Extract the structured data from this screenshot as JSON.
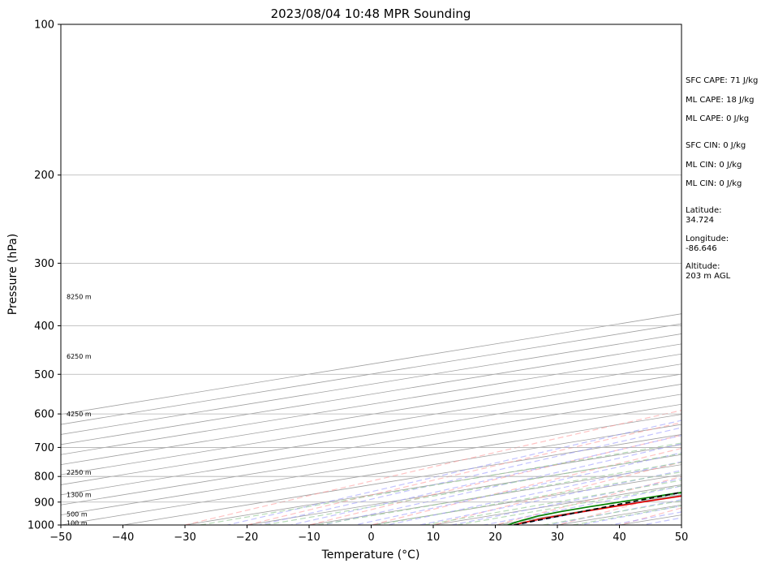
{
  "chart_data": {
    "type": "line",
    "subtype": "skew-t log-p sounding",
    "title": "2023/08/04 10:48 MPR Sounding",
    "xlabel": "Temperature (°C)",
    "ylabel": "Pressure (hPa)",
    "xlim": [
      -50,
      50
    ],
    "ylim": [
      1000,
      100
    ],
    "y_scale": "log",
    "x_ticks": [
      -50,
      -40,
      -30,
      -20,
      -10,
      0,
      10,
      20,
      30,
      40,
      50
    ],
    "y_ticks": [
      100,
      200,
      300,
      400,
      500,
      600,
      700,
      800,
      900,
      1000
    ],
    "grid": true,
    "height_labels": [
      {
        "pressure": 350,
        "label": "8250 m"
      },
      {
        "pressure": 460,
        "label": "6250 m"
      },
      {
        "pressure": 600,
        "label": "4250 m"
      },
      {
        "pressure": 785,
        "label": "2250 m"
      },
      {
        "pressure": 870,
        "label": "1300 m"
      },
      {
        "pressure": 950,
        "label": "500 m"
      },
      {
        "pressure": 990,
        "label": "100 m"
      }
    ],
    "stats": [
      "SFC CAPE: 71 J/kg",
      "ML CAPE: 18 J/kg",
      "ML CAPE: 0 J/kg",
      "SFC CIN: 0 J/kg",
      "ML CIN: 0 J/kg",
      "ML CIN: 0 J/kg"
    ],
    "location": [
      {
        "label": "Latitude:",
        "value": "34.724"
      },
      {
        "label": "Longitude:",
        "value": "-86.646"
      },
      {
        "label": "Altitude:",
        "value": "203 m AGL"
      }
    ],
    "series": [
      {
        "color": "#e00000",
        "style": "solid",
        "points": [
          [
            1000,
            23.0
          ],
          [
            990,
            22.2
          ],
          [
            970,
            21.2
          ],
          [
            950,
            20.8
          ],
          [
            930,
            20.8
          ],
          [
            900,
            20.8
          ],
          [
            880,
            21.2
          ],
          [
            850,
            21.2
          ],
          [
            820,
            21.2
          ],
          [
            800,
            20.8
          ],
          [
            780,
            20.4
          ],
          [
            760,
            20.0
          ],
          [
            740,
            19.6
          ],
          [
            720,
            19.4
          ],
          [
            700,
            19.2
          ],
          [
            690,
            18.8
          ],
          [
            680,
            18.2
          ],
          [
            660,
            17.2
          ],
          [
            640,
            16.2
          ],
          [
            620,
            15.3
          ],
          [
            600,
            14.6
          ],
          [
            580,
            14.0
          ],
          [
            560,
            13.6
          ],
          [
            540,
            13.0
          ],
          [
            520,
            12.2
          ],
          [
            500,
            11.4
          ],
          [
            480,
            10.5
          ],
          [
            460,
            9.5
          ],
          [
            440,
            8.2
          ],
          [
            420,
            7.0
          ],
          [
            400,
            5.8
          ],
          [
            380,
            4.6
          ],
          [
            360,
            3.2
          ],
          [
            340,
            1.6
          ],
          [
            320,
            -0.2
          ],
          [
            300,
            -2.2
          ],
          [
            285,
            -4.0
          ]
        ]
      },
      {
        "color": "#008000",
        "style": "solid",
        "points": [
          [
            1000,
            22.0
          ],
          [
            980,
            19.8
          ],
          [
            960,
            18.0
          ],
          [
            940,
            17.2
          ],
          [
            920,
            17.0
          ],
          [
            900,
            17.2
          ],
          [
            880,
            17.4
          ],
          [
            860,
            17.6
          ],
          [
            840,
            18.8
          ],
          [
            820,
            19.2
          ],
          [
            800,
            19.0
          ],
          [
            780,
            18.4
          ],
          [
            760,
            17.2
          ],
          [
            740,
            16.4
          ],
          [
            720,
            15.8
          ],
          [
            700,
            15.2
          ],
          [
            680,
            14.6
          ],
          [
            660,
            14.2
          ],
          [
            640,
            13.8
          ],
          [
            620,
            13.2
          ],
          [
            600,
            12.2
          ],
          [
            580,
            10.6
          ],
          [
            560,
            9.6
          ],
          [
            540,
            9.0
          ],
          [
            520,
            8.8
          ],
          [
            500,
            8.6
          ],
          [
            480,
            7.6
          ],
          [
            460,
            6.6
          ],
          [
            440,
            5.8
          ],
          [
            420,
            4.6
          ],
          [
            400,
            2.6
          ],
          [
            390,
            2.4
          ],
          [
            380,
            2.0
          ],
          [
            370,
            1.2
          ],
          [
            360,
            -0.8
          ],
          [
            350,
            -3.0
          ],
          [
            340,
            -5.0
          ],
          [
            330,
            -7.4
          ],
          [
            320,
            -10.4
          ],
          [
            310,
            -11.0
          ],
          [
            300,
            -12.4
          ],
          [
            292,
            -14.2
          ],
          [
            285,
            -14.8
          ]
        ]
      },
      {
        "color": "#000000",
        "style": "dashed",
        "points": [
          [
            1000,
            23.0
          ],
          [
            950,
            21.0
          ],
          [
            900,
            19.0
          ],
          [
            850,
            17.0
          ],
          [
            800,
            15.0
          ],
          [
            750,
            13.0
          ],
          [
            700,
            10.9
          ],
          [
            650,
            8.6
          ],
          [
            600,
            6.1
          ],
          [
            550,
            3.4
          ],
          [
            500,
            0.4
          ],
          [
            450,
            -3.0
          ],
          [
            400,
            -7.0
          ],
          [
            350,
            -11.7
          ],
          [
            300,
            -17.2
          ],
          [
            285,
            -19.2
          ]
        ]
      }
    ],
    "background_lines": {
      "isotherms": {
        "color": "#a0a0a0"
      },
      "dry_adiabats": {
        "color": "#ff9999"
      },
      "moist_adiabats": {
        "color": "#9999ff"
      },
      "mixing_ratio": {
        "color": "#99cc99"
      }
    }
  }
}
